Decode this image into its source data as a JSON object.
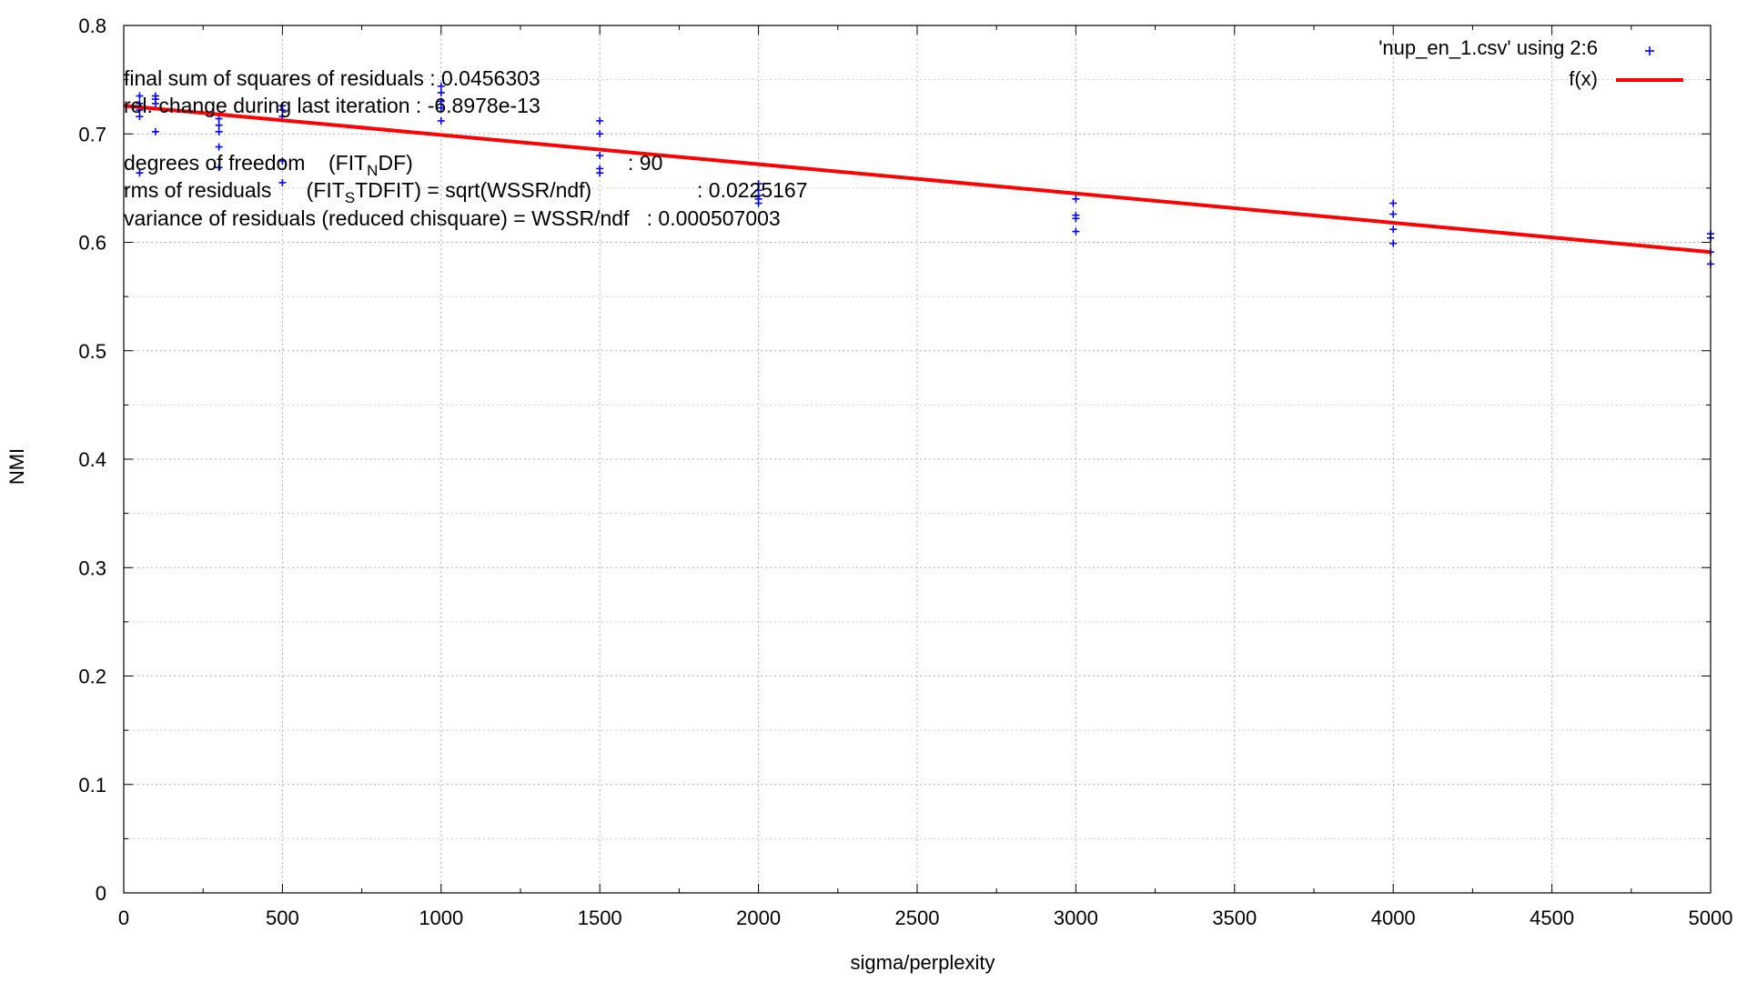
{
  "chart_data": {
    "type": "scatter",
    "xlabel": "sigma/perplexity",
    "ylabel": "NMI",
    "xlim": [
      0,
      5000
    ],
    "ylim": [
      0,
      0.8
    ],
    "x_ticks": [
      0,
      500,
      1000,
      1500,
      2000,
      2500,
      3000,
      3500,
      4000,
      4500,
      5000
    ],
    "y_ticks": [
      0,
      0.1,
      0.2,
      0.3,
      0.4,
      0.5,
      0.6,
      0.7,
      0.8
    ],
    "y_tick_labels": [
      "0",
      "0.1",
      "0.2",
      "0.3",
      "0.4",
      "0.5",
      "0.6",
      "0.7",
      "0.8"
    ],
    "grid": true,
    "legend_position": "top-right",
    "series": [
      {
        "name": "'nup_en_1.csv' using 2:6",
        "kind": "points",
        "marker": "+",
        "color": "#0000ff",
        "points": [
          [
            50,
            0.735
          ],
          [
            50,
            0.728
          ],
          [
            50,
            0.722
          ],
          [
            50,
            0.716
          ],
          [
            50,
            0.664
          ],
          [
            100,
            0.735
          ],
          [
            100,
            0.732
          ],
          [
            100,
            0.728
          ],
          [
            100,
            0.702
          ],
          [
            300,
            0.714
          ],
          [
            300,
            0.708
          ],
          [
            300,
            0.702
          ],
          [
            300,
            0.688
          ],
          [
            300,
            0.669
          ],
          [
            500,
            0.726
          ],
          [
            500,
            0.722
          ],
          [
            500,
            0.716
          ],
          [
            500,
            0.675
          ],
          [
            500,
            0.655
          ],
          [
            1000,
            0.744
          ],
          [
            1000,
            0.738
          ],
          [
            1000,
            0.73
          ],
          [
            1000,
            0.724
          ],
          [
            1000,
            0.712
          ],
          [
            1500,
            0.712
          ],
          [
            1500,
            0.7
          ],
          [
            1500,
            0.68
          ],
          [
            1500,
            0.668
          ],
          [
            1500,
            0.664
          ],
          [
            2000,
            0.654
          ],
          [
            2000,
            0.648
          ],
          [
            2000,
            0.643
          ],
          [
            2000,
            0.64
          ],
          [
            2000,
            0.636
          ],
          [
            3000,
            0.64
          ],
          [
            3000,
            0.625
          ],
          [
            3000,
            0.622
          ],
          [
            3000,
            0.61
          ],
          [
            4000,
            0.636
          ],
          [
            4000,
            0.626
          ],
          [
            4000,
            0.612
          ],
          [
            4000,
            0.599
          ],
          [
            5000,
            0.608
          ],
          [
            5000,
            0.604
          ],
          [
            5000,
            0.591
          ],
          [
            5000,
            0.58
          ]
        ]
      },
      {
        "name": "f(x)",
        "kind": "line",
        "color": "#ff0000",
        "x": [
          0,
          5000
        ],
        "y": [
          0.726,
          0.591
        ]
      }
    ],
    "annotations": [
      {
        "text": "final sum of squares of residuals : 0.0456303"
      },
      {
        "text": "rel. change during last iteration : -6.8978e-13"
      },
      {
        "pre": "degrees of freedom    (FIT",
        "sub": "N",
        "post": "DF)",
        "value": ": 90"
      },
      {
        "pre": "rms of residuals      (FIT",
        "sub": "S",
        "post": "TDFIT) = sqrt(WSSR/ndf)",
        "value": ": 0.0225167"
      },
      {
        "text": "variance of residuals (reduced chisquare) = WSSR/ndf   : 0.000507003"
      }
    ]
  }
}
